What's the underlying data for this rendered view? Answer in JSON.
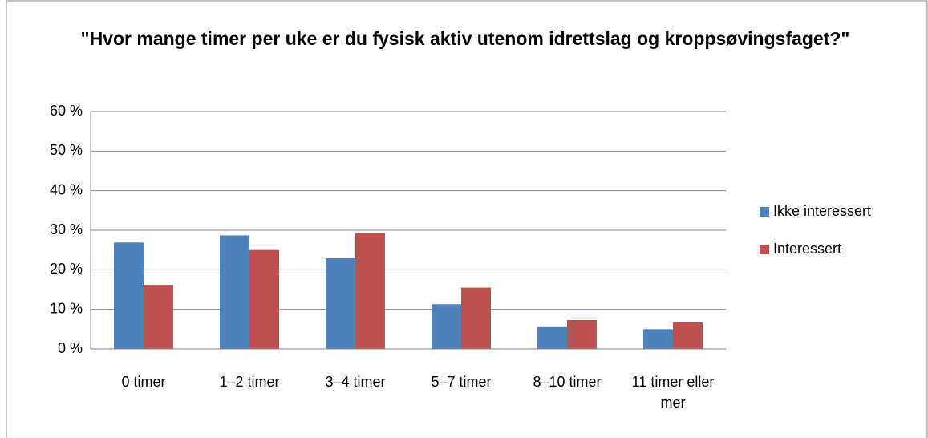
{
  "chart_data": {
    "type": "bar",
    "title": "\"Hvor mange timer per uke er du fysisk aktiv utenom idrettslag og kroppsøvingsfaget?\"",
    "categories": [
      "0 timer",
      "1–2 timer",
      "3–4 timer",
      "5–7 timer",
      "8–10 timer",
      "11 timer eller mer"
    ],
    "series": [
      {
        "name": "Ikke interessert",
        "color": "#4f81bd",
        "values": [
          26.9,
          28.7,
          22.9,
          11.3,
          5.5,
          5.0
        ]
      },
      {
        "name": "Interessert",
        "color": "#c0504d",
        "values": [
          16.2,
          25.0,
          29.3,
          15.5,
          7.3,
          6.7
        ]
      }
    ],
    "ylim": [
      0,
      60
    ],
    "yticks": [
      {
        "value": 0,
        "label": "0 %"
      },
      {
        "value": 10,
        "label": "10 %"
      },
      {
        "value": 20,
        "label": "20 %"
      },
      {
        "value": 30,
        "label": "30 %"
      },
      {
        "value": 40,
        "label": "40 %"
      },
      {
        "value": 50,
        "label": "50 %"
      },
      {
        "value": 60,
        "label": "60 %"
      }
    ],
    "grid": true,
    "legend": "right"
  }
}
